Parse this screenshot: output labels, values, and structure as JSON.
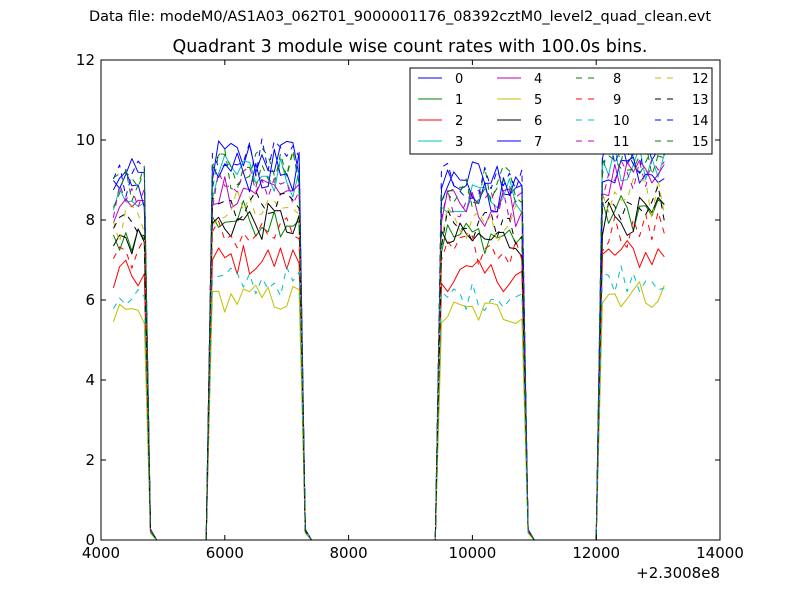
{
  "figure": {
    "suptitle": "Data file: modeM0/AS1A03_062T01_9000001176_08392cztM0_level2_quad_clean.evt",
    "title": "Quadrant 3 module wise count rates with 100.0s bins.",
    "offset_label": "+2.3008e8"
  },
  "chart_data": {
    "type": "line",
    "title": "Quadrant 3 module wise count rates with 100.0s bins.",
    "xlabel": "",
    "ylabel": "",
    "x_offset": 230080000,
    "xlim": [
      4000,
      14000
    ],
    "ylim": [
      0,
      12
    ],
    "xticks": [
      4000,
      6000,
      8000,
      10000,
      12000,
      14000
    ],
    "xtick_labels": [
      "4000",
      "6000",
      "8000",
      "10000",
      "12000",
      "14000"
    ],
    "yticks": [
      0,
      2,
      4,
      6,
      8,
      10,
      12
    ],
    "ytick_labels": [
      "0",
      "2",
      "4",
      "6",
      "8",
      "10",
      "12"
    ],
    "grid": false,
    "legend": {
      "position": "top-right",
      "columns": 4
    },
    "segments": [
      {
        "start": 4200,
        "end": 4700
      },
      {
        "start": 5800,
        "end": 7200
      },
      {
        "start": 9500,
        "end": 10800
      },
      {
        "start": 12100,
        "end": 13100
      }
    ],
    "x": [
      4200,
      4300,
      4400,
      4500,
      4600,
      4700,
      4800,
      4900,
      5000,
      5100,
      5200,
      5300,
      5400,
      5500,
      5600,
      5700,
      5800,
      5900,
      6000,
      6100,
      6200,
      6300,
      6400,
      6500,
      6600,
      6700,
      6800,
      6900,
      7000,
      7100,
      7200,
      7300,
      7400,
      7500,
      7600,
      7700,
      7800,
      7900,
      8000,
      8100,
      8200,
      8300,
      8400,
      8500,
      8600,
      8700,
      8800,
      8900,
      9000,
      9100,
      9200,
      9300,
      9400,
      9500,
      9600,
      9700,
      9800,
      9900,
      10000,
      10100,
      10200,
      10300,
      10400,
      10500,
      10600,
      10700,
      10800,
      10900,
      11000,
      11100,
      11200,
      11300,
      11400,
      11500,
      11600,
      11700,
      11800,
      11900,
      12000,
      12100,
      12200,
      12300,
      12400,
      12500,
      12600,
      12700,
      12800,
      12900,
      13000,
      13100
    ],
    "series": [
      {
        "name": "0",
        "color": "#0000ff",
        "dash": "solid",
        "level": 9.0
      },
      {
        "name": "1",
        "color": "#008000",
        "dash": "solid",
        "level": 7.6
      },
      {
        "name": "2",
        "color": "#ff0000",
        "dash": "solid",
        "level": 6.6
      },
      {
        "name": "3",
        "color": "#00bfbf",
        "dash": "solid",
        "level": 8.6
      },
      {
        "name": "4",
        "color": "#bf00bf",
        "dash": "solid",
        "level": 8.3
      },
      {
        "name": "5",
        "color": "#bfbf00",
        "dash": "solid",
        "level": 5.7
      },
      {
        "name": "6",
        "color": "#000000",
        "dash": "solid",
        "level": 7.5
      },
      {
        "name": "7",
        "color": "#0000ff",
        "dash": "solid",
        "level": 8.7
      },
      {
        "name": "8",
        "color": "#008000",
        "dash": "dashed",
        "level": 8.9
      },
      {
        "name": "9",
        "color": "#ff0000",
        "dash": "dashed",
        "level": 7.2
      },
      {
        "name": "10",
        "color": "#00bfbf",
        "dash": "dashed",
        "level": 6.1
      },
      {
        "name": "11",
        "color": "#bf00bf",
        "dash": "dashed",
        "level": 8.4
      },
      {
        "name": "12",
        "color": "#bfbf00",
        "dash": "dashed",
        "level": 7.9
      },
      {
        "name": "13",
        "color": "#000000",
        "dash": "dashed",
        "level": 7.8
      },
      {
        "name": "14",
        "color": "#0000ff",
        "dash": "dashed",
        "level": 9.0
      },
      {
        "name": "15",
        "color": "#008000",
        "dash": "dashed",
        "level": 8.8
      }
    ]
  }
}
